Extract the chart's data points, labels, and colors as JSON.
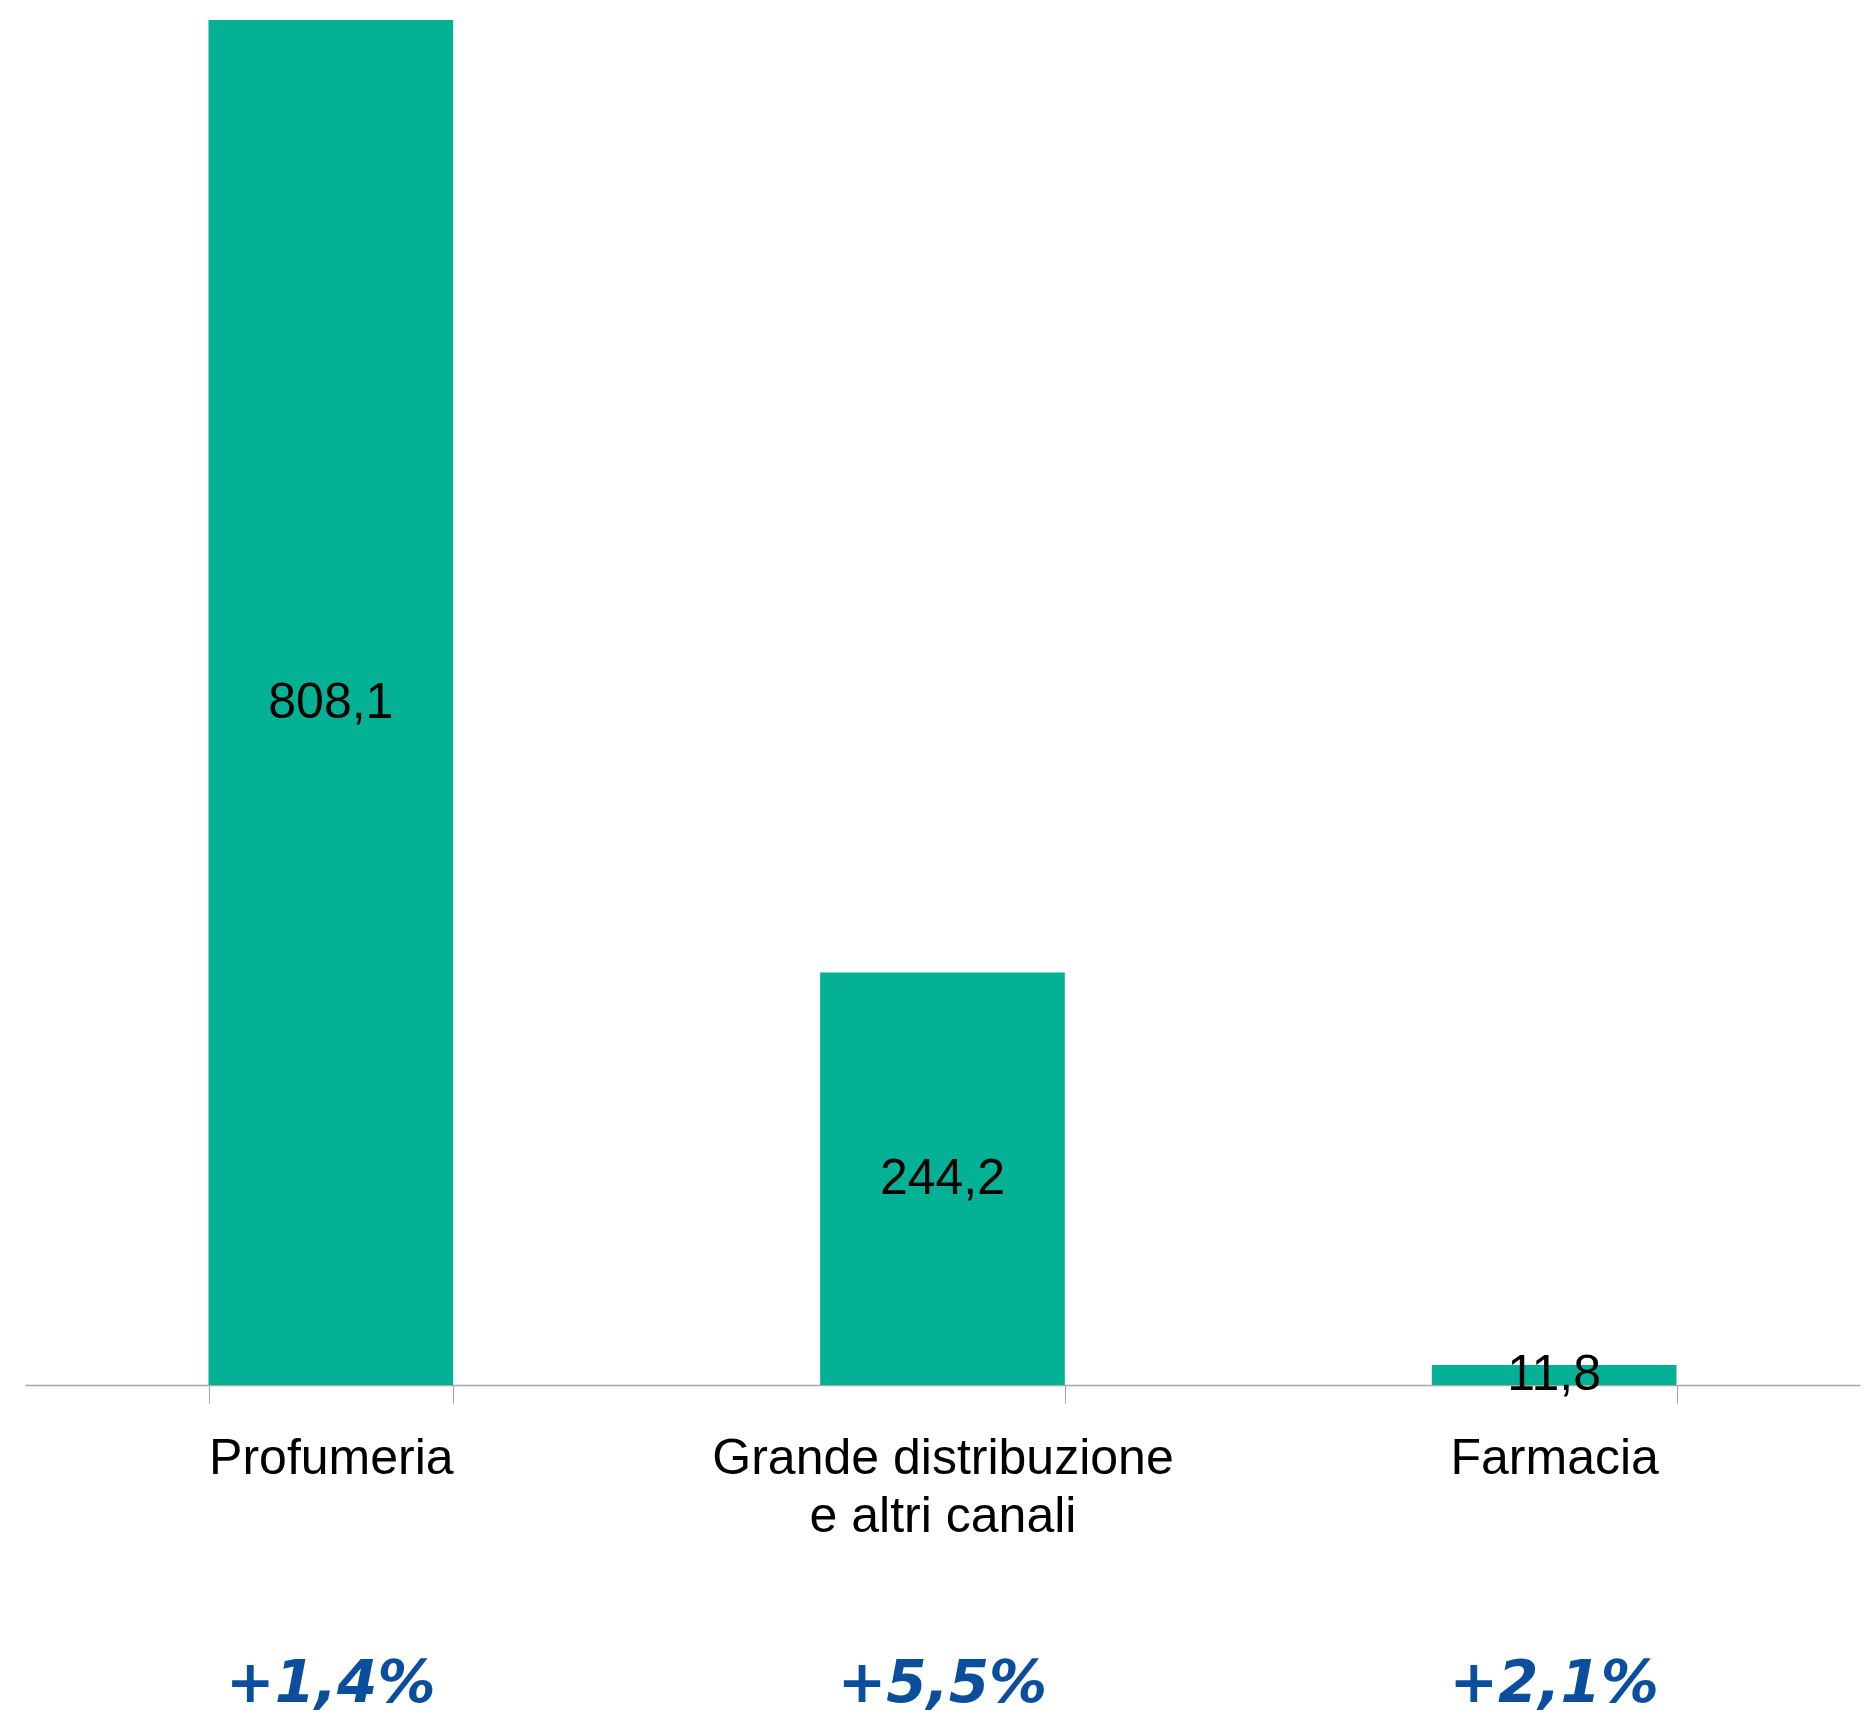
{
  "chart_data": {
    "type": "bar",
    "categories": [
      "Profumeria",
      "Grande distribuzione e altri canali",
      "Farmacia"
    ],
    "values": [
      808.1,
      244.2,
      11.8
    ],
    "value_labels": [
      "808,1",
      "244,2",
      "11,8"
    ],
    "color": "#05b194",
    "annotations": [
      "+1,4%",
      "+5,5%",
      "+2,1%"
    ]
  }
}
